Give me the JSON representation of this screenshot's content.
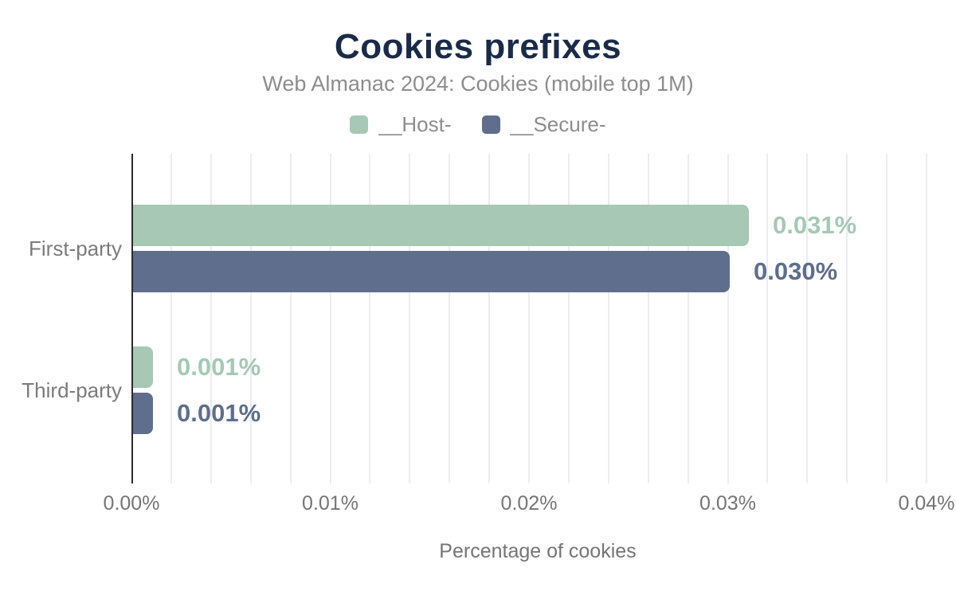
{
  "header": {
    "title": "Cookies prefixes",
    "subtitle": "Web Almanac 2024: Cookies (mobile top 1M)"
  },
  "chart_data": {
    "type": "bar",
    "orientation": "horizontal",
    "title": "Cookies prefixes",
    "subtitle": "Web Almanac 2024: Cookies (mobile top 1M)",
    "categories": [
      "First-party",
      "Third-party"
    ],
    "series": [
      {
        "name": "__Host-",
        "color": "#a6c8b5",
        "values": [
          0.031,
          0.001
        ],
        "labels": [
          "0.031%",
          "0.001%"
        ]
      },
      {
        "name": "__Secure-",
        "color": "#5e6e8c",
        "values": [
          0.03,
          0.001
        ],
        "labels": [
          "0.030%",
          "0.001%"
        ]
      }
    ],
    "xlabel": "Percentage of cookies",
    "ylabel": "",
    "xlim": [
      0,
      0.04
    ],
    "x_ticks": [
      "0.00%",
      "0.01%",
      "0.02%",
      "0.03%",
      "0.04%"
    ],
    "minor_grid_interval": 0.002,
    "grid": "vertical-minor",
    "legend_position": "top"
  },
  "colors": {
    "title": "#1a2b49",
    "subtitle_gray": "#8d8d8d",
    "axis_text_gray": "#757575",
    "axis_line": "#2b2b2b",
    "gridline": "#ededed",
    "host_green": "#a6c8b5",
    "secure_blue": "#5e6e8c"
  }
}
